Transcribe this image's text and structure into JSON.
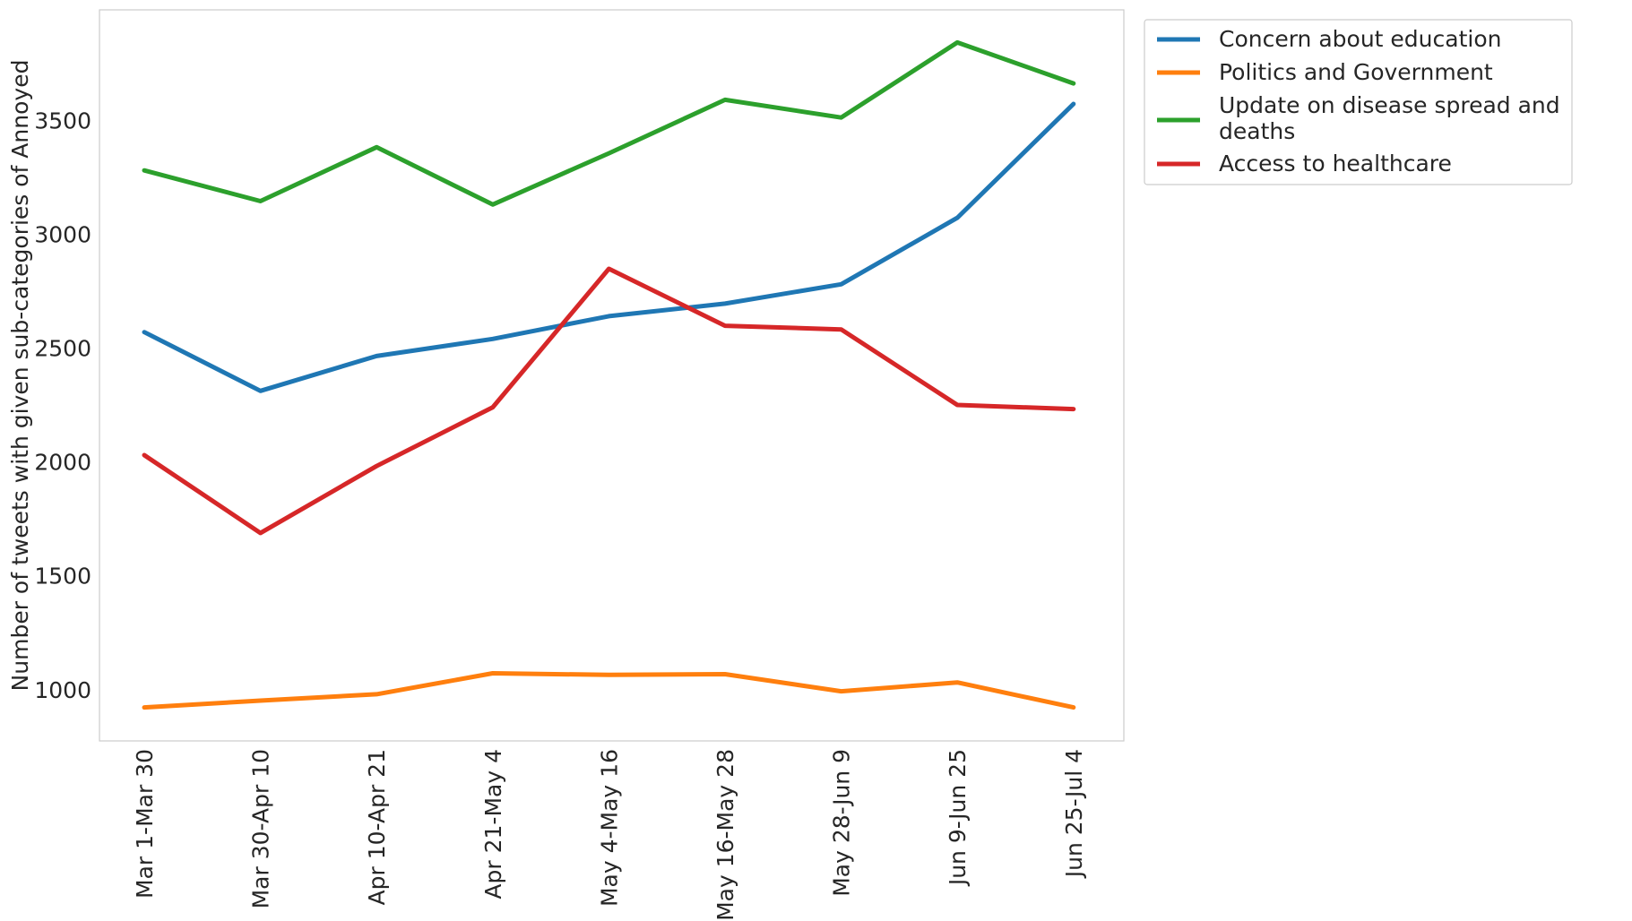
{
  "chart_data": {
    "type": "line",
    "title": "",
    "xlabel": "",
    "ylabel": "Number of tweets with given sub-categories of Annoyed",
    "categories": [
      "Mar 1-Mar 30",
      "Mar 30-Apr 10",
      "Apr 10-Apr 21",
      "Apr 21-May 4",
      "May 4-May 16",
      "May 16-May 28",
      "May 28-Jun 9",
      "Jun 9-Jun 25",
      "Jun 25-Jul 4"
    ],
    "ylim": [
      775,
      3985
    ],
    "yticks": [
      "1000",
      "1500",
      "2000",
      "2500",
      "3000",
      "3500"
    ],
    "grid": false,
    "legend_position": "outside-top-right",
    "series": [
      {
        "name": "Concern about education",
        "color": "#1f77b4",
        "values": [
          2570,
          2312,
          2465,
          2540,
          2640,
          2695,
          2780,
          3072,
          3572
        ]
      },
      {
        "name": "Politics and Government",
        "color": "#ff7f0e",
        "values": [
          922,
          952,
          980,
          1072,
          1065,
          1068,
          993,
          1032,
          922
        ]
      },
      {
        "name": "Update on disease spread and deaths",
        "color": "#2ca02c",
        "values": [
          3280,
          3145,
          3382,
          3130,
          3355,
          3590,
          3512,
          3842,
          3662
        ]
      },
      {
        "name": "Access to healthcare",
        "color": "#d62728",
        "values": [
          2030,
          1688,
          1982,
          2240,
          2848,
          2598,
          2582,
          2250,
          2232
        ]
      }
    ]
  }
}
